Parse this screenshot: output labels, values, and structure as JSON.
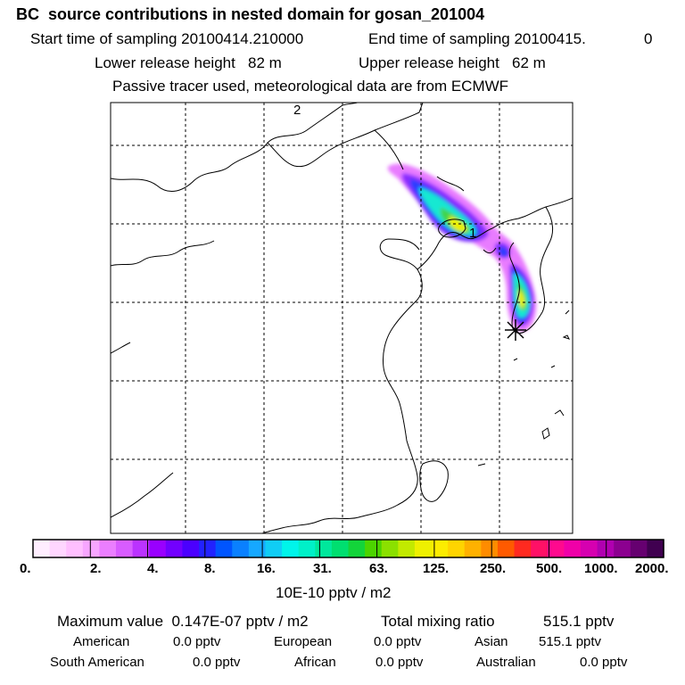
{
  "header": {
    "title": "BC  source contributions in nested domain for gosan_201004",
    "start_label": "Start time of sampling 20100414.210000",
    "end_label": "End time of sampling 20100415.",
    "end_value": "0",
    "lower_release": "Lower release height   82 m",
    "upper_release": "Upper release height   62 m",
    "tracer_note": "Passive tracer used, meteorological data are from ECMWF"
  },
  "map": {
    "grid_label": "2",
    "marker_label": "1",
    "receptor_symbol": "*"
  },
  "colorbar": {
    "colors": [
      "#ffeeff",
      "#ffd6ff",
      "#ffbfff",
      "#f7a6ff",
      "#eb7eff",
      "#d85cff",
      "#bb33ff",
      "#9900ff",
      "#7200ff",
      "#4b00ff",
      "#2222ff",
      "#0055ff",
      "#0a80ff",
      "#16a8ff",
      "#10cdf5",
      "#00f5ea",
      "#00f0c8",
      "#00e89c",
      "#00df70",
      "#13d43a",
      "#4cd400",
      "#8be000",
      "#c2ea00",
      "#eef000",
      "#fcec00",
      "#ffd400",
      "#ffb100",
      "#ff8c00",
      "#ff5a00",
      "#ff2a20",
      "#ff1166",
      "#ff0a8e",
      "#f000a8",
      "#d600b0",
      "#b000b0",
      "#8c0090",
      "#660070",
      "#400050"
    ],
    "tick_labels": [
      "0.",
      "2.",
      "4.",
      "8.",
      "16.",
      "31.",
      "63.",
      "125.",
      "250.",
      "500.",
      "1000.",
      "2000."
    ],
    "units": "10E-10 pptv / m2"
  },
  "summary": {
    "max_value": "Maximum value  0.147E-07 pptv / m2",
    "total_mixing": "Total mixing ratio",
    "total_value": "515.1 pptv",
    "sources": [
      {
        "name": "American",
        "value": "0.0 pptv"
      },
      {
        "name": "European",
        "value": "0.0 pptv"
      },
      {
        "name": "Asian",
        "value": "515.1 pptv"
      },
      {
        "name": "South American",
        "value": "0.0 pptv"
      },
      {
        "name": "African",
        "value": "0.0 pptv"
      },
      {
        "name": "Australian",
        "value": "0.0 pptv"
      }
    ]
  }
}
